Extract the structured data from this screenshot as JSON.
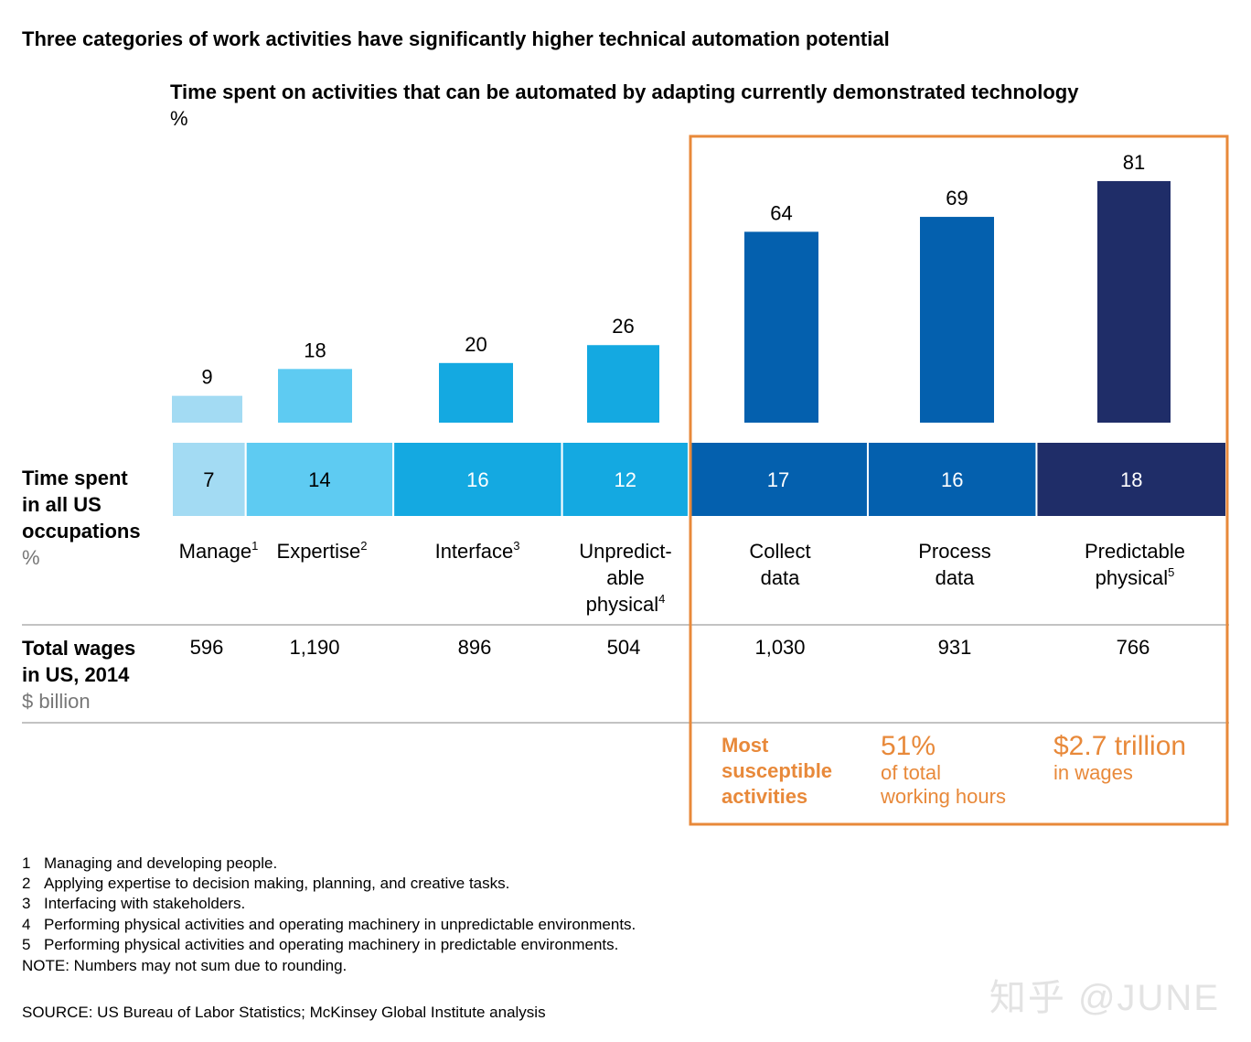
{
  "title": "Three categories of work activities have significantly higher technical automation potential",
  "chart_data": {
    "type": "bar",
    "title": "Time spent on activities that can be automated by adapting currently demonstrated technology",
    "unit": "%",
    "categories": [
      "Manage",
      "Expertise",
      "Interface",
      "Unpredictable physical",
      "Collect data",
      "Process data",
      "Predictable physical"
    ],
    "values": [
      9,
      18,
      20,
      26,
      64,
      69,
      81
    ],
    "time_spent": [
      7,
      14,
      16,
      12,
      17,
      16,
      18
    ],
    "wages": [
      "596",
      "1,190",
      "896",
      "504",
      "1,030",
      "931",
      "766"
    ],
    "colors": [
      "#a3dbf3",
      "#5ecbf2",
      "#14a9e1",
      "#14a9e1",
      "#0460ae",
      "#0460ae",
      "#1f2d68"
    ],
    "highlight_color": "#e8893a",
    "value_label_colors": [
      "#000000",
      "#000000",
      "#ffffff",
      "#ffffff",
      "#ffffff",
      "#ffffff",
      "#ffffff"
    ],
    "ylim": [
      0,
      100
    ]
  },
  "category_labels": [
    {
      "main": "Manage",
      "sup": "1"
    },
    {
      "main": "Expertise",
      "sup": "2"
    },
    {
      "main": "Interface",
      "sup": "3"
    },
    {
      "lines": [
        "Unpredict-",
        "able"
      ],
      "main": "physical",
      "sup": "4"
    },
    {
      "lines": [
        "Collect"
      ],
      "main": "data",
      "sup": ""
    },
    {
      "lines": [
        "Process"
      ],
      "main": "data",
      "sup": ""
    },
    {
      "lines": [
        "Predictable"
      ],
      "main": "physical",
      "sup": "5"
    }
  ],
  "rows": {
    "time_spent_label": [
      "Time spent",
      "in all US",
      "occupations"
    ],
    "time_spent_unit": "%",
    "wages_label": [
      "Total wages",
      "in US, 2014"
    ],
    "wages_unit": "$ billion"
  },
  "highlight": {
    "label": [
      "Most",
      "susceptible",
      "activities"
    ],
    "hours_big": "51%",
    "hours_small": [
      "of total",
      "working hours"
    ],
    "wages_big": "$2.7 trillion",
    "wages_small": "in wages"
  },
  "footnotes": [
    {
      "num": "1",
      "text": "Managing and developing people."
    },
    {
      "num": "2",
      "text": "Applying expertise to decision making, planning, and creative tasks."
    },
    {
      "num": "3",
      "text": "Interfacing with stakeholders."
    },
    {
      "num": "4",
      "text": "Performing physical activities and operating machinery in unpredictable environments."
    },
    {
      "num": "5",
      "text": "Performing physical activities and operating machinery in predictable environments."
    }
  ],
  "note": "NOTE: Numbers may not sum due to rounding.",
  "source": "SOURCE:  US Bureau of Labor Statistics; McKinsey Global Institute analysis",
  "watermark": "知乎 @JUNE"
}
